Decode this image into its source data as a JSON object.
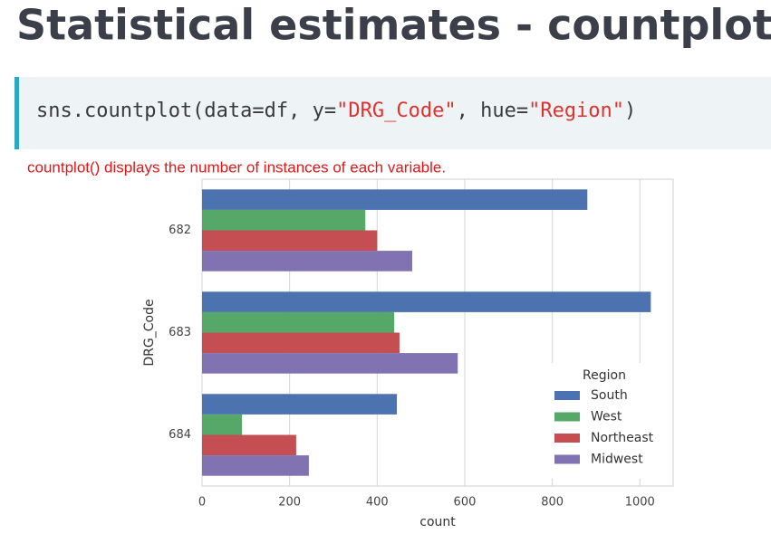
{
  "header": {
    "title": "Statistical estimates - countplot"
  },
  "code": {
    "parts": [
      "sns.countplot(data=df, y=",
      "\"DRG_Code\"",
      ", hue=",
      "\"Region\"",
      ")"
    ]
  },
  "caption": "countplot() displays the number of instances of each variable.",
  "chart_data": {
    "type": "bar",
    "orientation": "horizontal",
    "xlabel": "count",
    "ylabel": "DRG_Code",
    "categories": [
      "682",
      "683",
      "684"
    ],
    "series": [
      {
        "name": "South",
        "color": "#4c72b0",
        "values": [
          880,
          1025,
          445
        ]
      },
      {
        "name": "West",
        "color": "#55a868",
        "values": [
          373,
          439,
          91
        ]
      },
      {
        "name": "Northeast",
        "color": "#c44e52",
        "values": [
          400,
          451,
          215
        ]
      },
      {
        "name": "Midwest",
        "color": "#8172b2",
        "values": [
          480,
          584,
          244
        ]
      }
    ],
    "xlim": [
      0,
      1076
    ],
    "xticks": [
      0,
      200,
      400,
      600,
      800,
      1000
    ],
    "grid": true,
    "legend": {
      "title": "Region",
      "position": "lower right"
    }
  }
}
